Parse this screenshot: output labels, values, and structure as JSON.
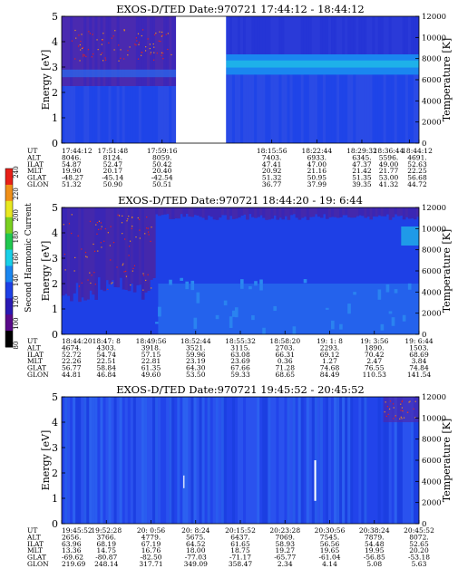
{
  "chart_data": {
    "type": "heatmap",
    "colorbar": {
      "label": "Second Harmonic Current",
      "ticks": [
        "80",
        "100",
        "120",
        "140",
        "160",
        "180",
        "200",
        "220",
        "240"
      ],
      "colors": [
        "#000000",
        "#5a0a8a",
        "#2a1ab4",
        "#1e40e6",
        "#1a86f0",
        "#18d0e8",
        "#20c850",
        "#7ad020",
        "#e8e820",
        "#f09018",
        "#e82018"
      ]
    },
    "panels": [
      {
        "title": "EXOS-D/TED   Date:970721   17:44:12 - 18:44:12",
        "ylabel": "Energy [eV]",
        "y2label": "Temperature [K]",
        "ylim": [
          0,
          5
        ],
        "y2lim": [
          0,
          12000
        ],
        "yticks": [
          "0",
          "1",
          "2",
          "3",
          "4",
          "5"
        ],
        "y2ticks": [
          "0",
          "2000",
          "4000",
          "6000",
          "8000",
          "10000",
          "12000"
        ],
        "gap": [
          0.32,
          0.46
        ],
        "band": {
          "lo": 2.7,
          "hi": 3.5,
          "x_from": 0.46
        },
        "grid": false,
        "table": {
          "labels": [
            "UT",
            "ALT",
            "ILAT",
            "MLT",
            "GLAT",
            "GLON"
          ],
          "columns": [
            [
              "17:44:12",
              "8046.",
              "54.87",
              "19.90",
              "-48.27",
              "51.32"
            ],
            [
              "17:51:48",
              "8124.",
              "52.47",
              "20.17",
              "-45.14",
              "50.90"
            ],
            [
              "17:59:16",
              "8059.",
              "50.42",
              "20.40",
              "-42.54",
              "50.51"
            ],
            [
              "18:15:56",
              "7403.",
              "47.41",
              "20.92",
              "51.32",
              "36.77"
            ],
            [
              "18:22:44",
              "6933.",
              "47.00",
              "21.16",
              "50.95",
              "37.99"
            ],
            [
              "18:29:32",
              "6345.",
              "47.37",
              "21.42",
              "51.35",
              "39.35"
            ],
            [
              "18:36:44",
              "5596.",
              "49.00",
              "21.77",
              "53.00",
              "41.32"
            ],
            [
              "18:44:12",
              "4691.",
              "52.63",
              "22.25",
              "56.68",
              "44.72"
            ]
          ]
        }
      },
      {
        "title": "EXOS-D/TED   Date:970721   18:44:20 - 19: 6:44",
        "ylabel": "Energy [eV]",
        "y2label": "Temperature [K]",
        "ylim": [
          0,
          5
        ],
        "y2lim": [
          0,
          12000
        ],
        "yticks": [
          "0",
          "1",
          "2",
          "3",
          "4",
          "5"
        ],
        "y2ticks": [
          "0",
          "2000",
          "4000",
          "6000",
          "8000",
          "10000",
          "12000"
        ],
        "gap": null,
        "band": null,
        "grid": false,
        "table": {
          "labels": [
            "UT",
            "ALT",
            "ILAT",
            "MLT",
            "GLAT",
            "GLON"
          ],
          "columns": [
            [
              "18:44:20",
              "4674.",
              "52.72",
              "22.26",
              "56.77",
              "44.81"
            ],
            [
              "18:47: 8",
              "4303.",
              "54.74",
              "22.51",
              "58.84",
              "46.84"
            ],
            [
              "18:49:56",
              "3918.",
              "57.15",
              "22.81",
              "61.35",
              "49.60"
            ],
            [
              "18:52:44",
              "3521.",
              "59.96",
              "23.19",
              "64.30",
              "53.50"
            ],
            [
              "18:55:32",
              "3115.",
              "63.08",
              "23.69",
              "67.66",
              "59.33"
            ],
            [
              "18:58:20",
              "2703.",
              "66.31",
              "0.36",
              "71.28",
              "68.65"
            ],
            [
              "19: 1: 8",
              "2293.",
              "69.12",
              "1.27",
              "74.68",
              "84.49"
            ],
            [
              "19: 3:56",
              "1890.",
              "70.42",
              "2.47",
              "76.55",
              "110.53"
            ],
            [
              "19: 6:44",
              "1503.",
              "68.69",
              "3.84",
              "74.84",
              "141.54"
            ]
          ]
        }
      },
      {
        "title": "EXOS-D/TED   Date:970721   19:45:52 - 20:45:52",
        "ylabel": "Energy [eV]",
        "y2label": "Temperature [K]",
        "ylim": [
          0,
          5
        ],
        "y2lim": [
          0,
          12000
        ],
        "yticks": [
          "0",
          "1",
          "2",
          "3",
          "4",
          "5"
        ],
        "y2ticks": [
          "0",
          "2000",
          "4000",
          "6000",
          "8000",
          "10000",
          "12000"
        ],
        "gap": null,
        "band": null,
        "grid": false,
        "table": {
          "labels": [
            "UT",
            "ALT",
            "ILAT",
            "MLT",
            "GLAT",
            "GLON"
          ],
          "columns": [
            [
              "19:45:52",
              "2656.",
              "63.96",
              "13.36",
              "-69.62",
              "219.69"
            ],
            [
              "19:52:28",
              "3766.",
              "68.19",
              "14.75",
              "-80.87",
              "248.14"
            ],
            [
              "20: 0:56",
              "4779.",
              "67.19",
              "16.76",
              "-82.50",
              "317.71"
            ],
            [
              "20: 8:24",
              "5675.",
              "64.52",
              "18.00",
              "-77.03",
              "349.09"
            ],
            [
              "20:15:52",
              "6437.",
              "61.65",
              "18.75",
              "-71.17",
              "358.47"
            ],
            [
              "20:23:28",
              "7069.",
              "58.93",
              "19.27",
              "-65.77",
              "2.34"
            ],
            [
              "20:30:56",
              "7545.",
              "56.56",
              "19.65",
              "-61.04",
              "4.14"
            ],
            [
              "20:38:24",
              "7879.",
              "54.48",
              "19.95",
              "-56.85",
              "5.08"
            ],
            [
              "20:45:52",
              "8072.",
              "52.65",
              "20.20",
              "-53.18",
              "5.63"
            ]
          ]
        }
      }
    ]
  }
}
